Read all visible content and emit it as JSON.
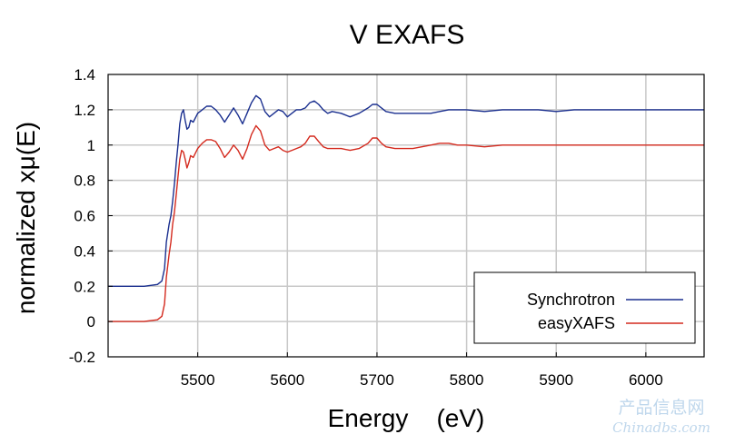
{
  "chart_data": {
    "type": "line",
    "title": "V EXAFS",
    "xlabel": "Energy    (eV)",
    "ylabel": "normalized xμ(E)",
    "xlim": [
      5400,
      6065
    ],
    "ylim": [
      -0.2,
      1.4
    ],
    "x_ticks": [
      5500,
      5600,
      5700,
      5800,
      5900,
      6000
    ],
    "y_ticks": [
      -0.2,
      0,
      0.2,
      0.4,
      0.6,
      0.8,
      1,
      1.2,
      1.4
    ],
    "x_tick_labels": [
      "5500",
      "5600",
      "5700",
      "5800",
      "5900",
      "6000"
    ],
    "y_tick_labels": [
      "-0.2",
      "0",
      "0.2",
      "0.4",
      "0.6",
      "0.8",
      "1",
      "1.2",
      "1.4"
    ],
    "grid": true,
    "legend_position": "bottom-right",
    "series": [
      {
        "name": "Synchrotron",
        "color": "#1a2f8f",
        "x": [
          5400,
          5440,
          5455,
          5460,
          5463,
          5465,
          5468,
          5470,
          5472,
          5474,
          5476,
          5478,
          5480,
          5482,
          5484,
          5486,
          5488,
          5490,
          5492,
          5495,
          5500,
          5505,
          5510,
          5515,
          5520,
          5525,
          5530,
          5535,
          5540,
          5545,
          5550,
          5555,
          5560,
          5565,
          5570,
          5575,
          5580,
          5585,
          5590,
          5595,
          5600,
          5605,
          5610,
          5615,
          5620,
          5625,
          5630,
          5635,
          5640,
          5645,
          5650,
          5660,
          5670,
          5680,
          5690,
          5695,
          5700,
          5705,
          5710,
          5720,
          5730,
          5740,
          5750,
          5760,
          5770,
          5780,
          5790,
          5800,
          5820,
          5840,
          5860,
          5880,
          5900,
          5920,
          5940,
          5960,
          5980,
          6000,
          6020,
          6040,
          6065
        ],
        "y": [
          0.2,
          0.2,
          0.21,
          0.23,
          0.3,
          0.45,
          0.55,
          0.6,
          0.68,
          0.78,
          0.9,
          1.0,
          1.12,
          1.18,
          1.2,
          1.14,
          1.09,
          1.1,
          1.14,
          1.13,
          1.18,
          1.2,
          1.22,
          1.22,
          1.2,
          1.17,
          1.13,
          1.17,
          1.21,
          1.17,
          1.12,
          1.18,
          1.24,
          1.28,
          1.26,
          1.19,
          1.16,
          1.18,
          1.2,
          1.19,
          1.16,
          1.18,
          1.2,
          1.2,
          1.21,
          1.24,
          1.25,
          1.23,
          1.2,
          1.18,
          1.19,
          1.18,
          1.16,
          1.18,
          1.21,
          1.23,
          1.23,
          1.21,
          1.19,
          1.18,
          1.18,
          1.18,
          1.18,
          1.18,
          1.19,
          1.2,
          1.2,
          1.2,
          1.19,
          1.2,
          1.2,
          1.2,
          1.19,
          1.2,
          1.2,
          1.2,
          1.2,
          1.2,
          1.2,
          1.2,
          1.2
        ]
      },
      {
        "name": "easyXAFS",
        "color": "#d42a1e",
        "x": [
          5400,
          5440,
          5455,
          5460,
          5463,
          5465,
          5468,
          5470,
          5472,
          5474,
          5476,
          5478,
          5480,
          5482,
          5484,
          5486,
          5488,
          5490,
          5492,
          5495,
          5500,
          5505,
          5510,
          5515,
          5520,
          5525,
          5530,
          5535,
          5540,
          5545,
          5550,
          5555,
          5560,
          5565,
          5570,
          5575,
          5580,
          5585,
          5590,
          5595,
          5600,
          5605,
          5610,
          5615,
          5620,
          5625,
          5630,
          5635,
          5640,
          5645,
          5650,
          5660,
          5670,
          5680,
          5690,
          5695,
          5700,
          5705,
          5710,
          5720,
          5730,
          5740,
          5750,
          5760,
          5770,
          5780,
          5790,
          5800,
          5820,
          5840,
          5860,
          5880,
          5900,
          5920,
          5940,
          5960,
          5980,
          6000,
          6020,
          6040,
          6065
        ],
        "y": [
          0.0,
          0.0,
          0.01,
          0.03,
          0.1,
          0.25,
          0.38,
          0.45,
          0.55,
          0.62,
          0.72,
          0.82,
          0.92,
          0.97,
          0.96,
          0.92,
          0.87,
          0.9,
          0.94,
          0.93,
          0.98,
          1.01,
          1.03,
          1.03,
          1.02,
          0.98,
          0.93,
          0.96,
          1.0,
          0.97,
          0.92,
          0.98,
          1.06,
          1.11,
          1.08,
          1.0,
          0.97,
          0.98,
          0.99,
          0.97,
          0.96,
          0.97,
          0.98,
          0.99,
          1.01,
          1.05,
          1.05,
          1.02,
          0.99,
          0.98,
          0.98,
          0.98,
          0.97,
          0.98,
          1.01,
          1.04,
          1.04,
          1.01,
          0.99,
          0.98,
          0.98,
          0.98,
          0.99,
          1.0,
          1.01,
          1.01,
          1.0,
          1.0,
          0.99,
          1.0,
          1.0,
          1.0,
          1.0,
          1.0,
          1.0,
          1.0,
          1.0,
          1.0,
          1.0,
          1.0,
          1.0
        ]
      }
    ]
  },
  "watermark": {
    "line1": "产品信息网",
    "line2": "Chinadbs.com"
  }
}
